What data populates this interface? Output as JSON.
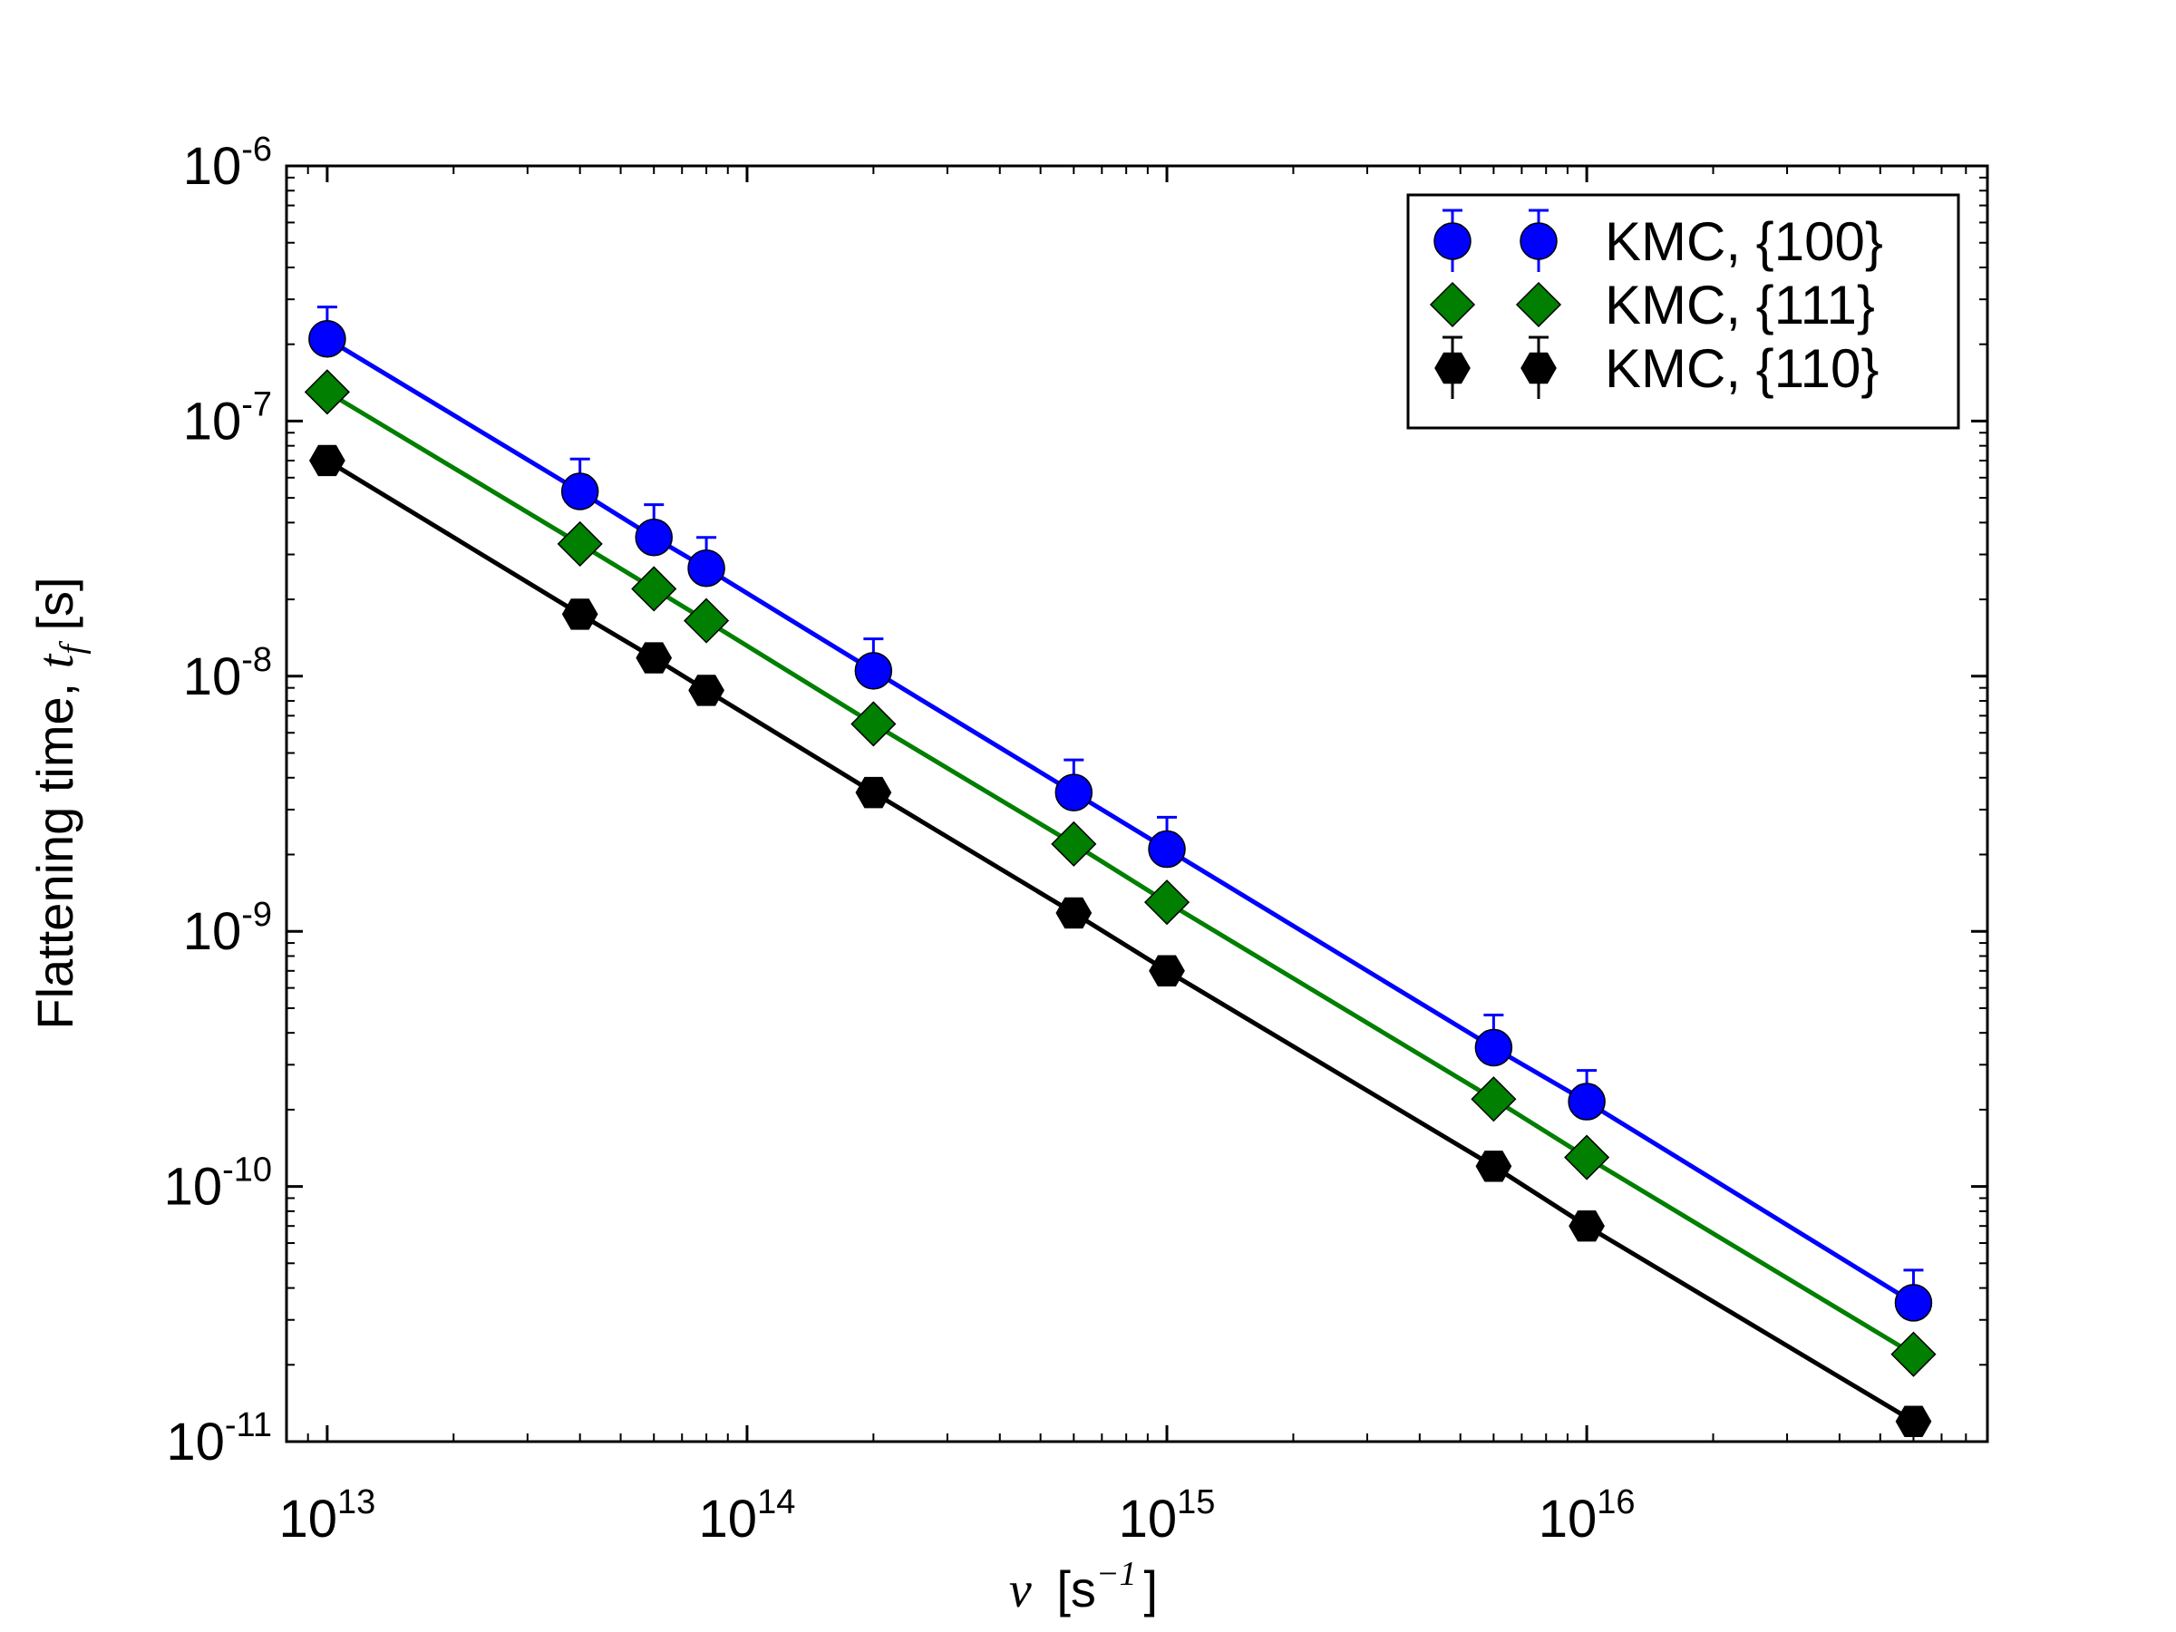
{
  "chart_data": {
    "type": "scatter",
    "scale": {
      "x": "log",
      "y": "log"
    },
    "xlabel": {
      "symbol": "ν",
      "unit_open": "[s",
      "unit_exp": "−1",
      "unit_close": "]"
    },
    "ylabel": {
      "text": "Flattening time, ",
      "symbol_base": "t",
      "symbol_sub": "f",
      "unit": " [s]"
    },
    "xlim": [
      8000000000000.0,
      9e+16
    ],
    "ylim": [
      1e-11,
      1e-06
    ],
    "x_ticks": [
      {
        "value": 10000000000000.0,
        "base": "10",
        "exp": "13"
      },
      {
        "value": 100000000000000.0,
        "base": "10",
        "exp": "14"
      },
      {
        "value": 1000000000000000.0,
        "base": "10",
        "exp": "15"
      },
      {
        "value": 1e+16,
        "base": "10",
        "exp": "16"
      }
    ],
    "y_ticks": [
      {
        "value": 1e-06,
        "base": "10",
        "exp": "-6"
      },
      {
        "value": 1e-07,
        "base": "10",
        "exp": "-7"
      },
      {
        "value": 1e-08,
        "base": "10",
        "exp": "-8"
      },
      {
        "value": 1e-09,
        "base": "10",
        "exp": "-9"
      },
      {
        "value": 1e-10,
        "base": "10",
        "exp": "-10"
      },
      {
        "value": 1e-11,
        "base": "10",
        "exp": "-11"
      }
    ],
    "x": [
      10000000000000.0,
      40000000000000.0,
      60000000000000.0,
      80000000000000.0,
      200000000000000.0,
      600000000000000.0,
      1000000000000000.0,
      6000000000000000.0,
      1e+16,
      6e+16
    ],
    "series": [
      {
        "name": "KMC,  {100}",
        "color": "#0000ff",
        "marker": "circle",
        "values": [
          2.1e-07,
          5.3e-08,
          3.5e-08,
          2.65e-08,
          1.05e-08,
          3.5e-09,
          2.1e-09,
          3.5e-10,
          2.15e-10,
          3.5e-11
        ],
        "error_up": [
          7e-08,
          1.8e-08,
          1.2e-08,
          8.5e-09,
          3.5e-09,
          1.2e-09,
          7e-10,
          1.2e-10,
          7e-11,
          1.2e-11
        ]
      },
      {
        "name": "KMC,  {111}",
        "color": "#007f00",
        "marker": "diamond",
        "values": [
          1.3e-07,
          3.3e-08,
          2.2e-08,
          1.65e-08,
          6.5e-09,
          2.2e-09,
          1.3e-09,
          2.2e-10,
          1.3e-10,
          2.2e-11
        ],
        "error_up": [
          0,
          0,
          0,
          0,
          0,
          0,
          0,
          0,
          0,
          0
        ]
      },
      {
        "name": "KMC,  {110}",
        "color": "#000000",
        "marker": "hexagon",
        "values": [
          7e-08,
          1.75e-08,
          1.18e-08,
          8.8e-09,
          3.5e-09,
          1.18e-09,
          7e-10,
          1.2e-10,
          7e-11,
          1.2e-11
        ],
        "error_up": [
          0,
          0,
          0,
          0,
          0,
          0,
          0,
          0,
          0,
          0
        ]
      }
    ],
    "legend": {
      "position": "top-right"
    }
  }
}
